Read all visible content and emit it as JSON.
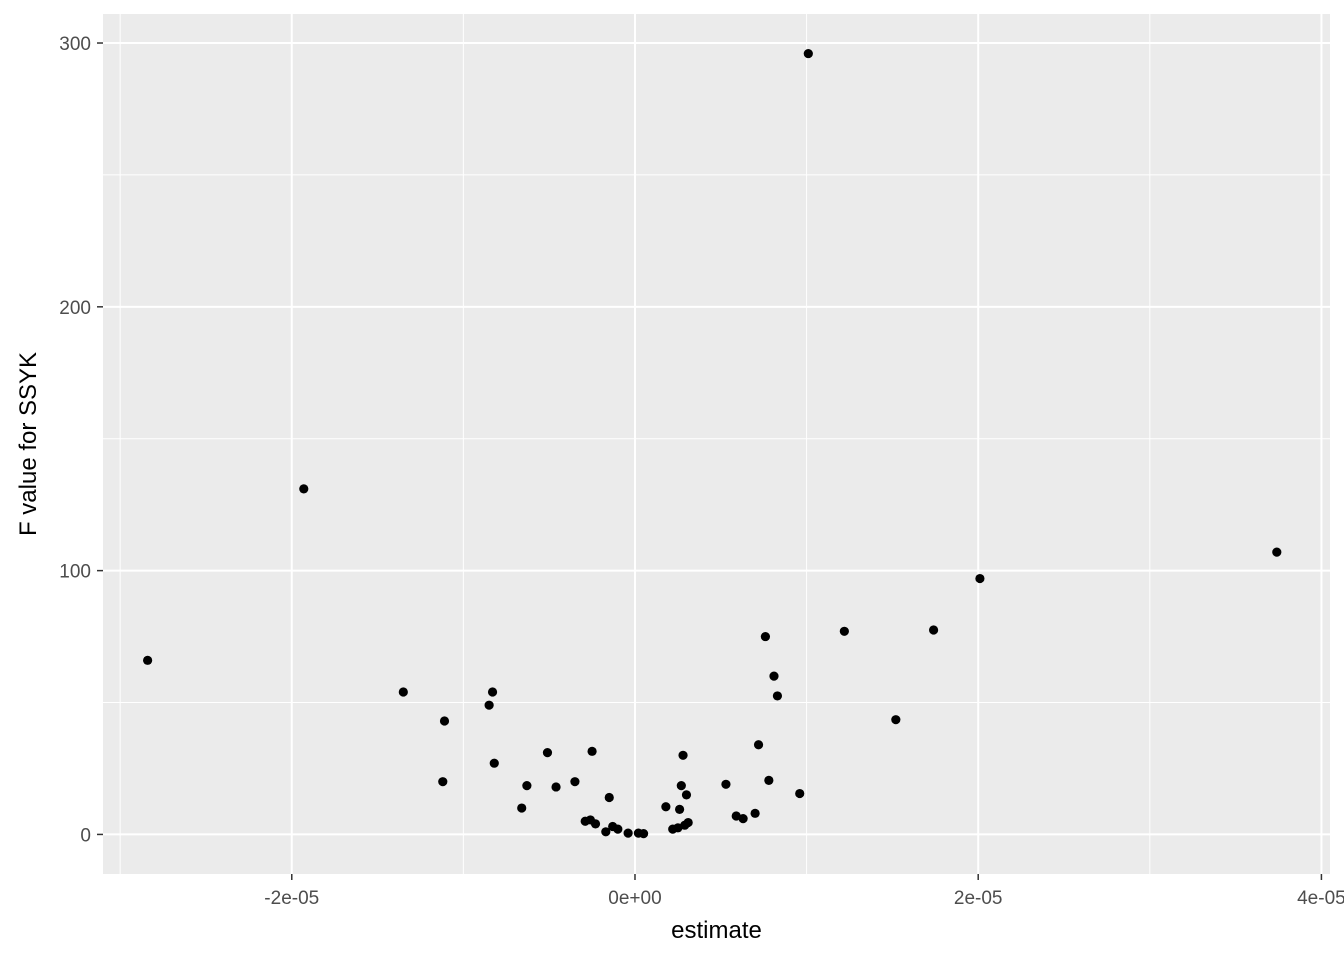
{
  "chart_data": {
    "type": "scatter",
    "title": "",
    "xlabel": "estimate",
    "ylabel": "F value for SSYK",
    "xlim": [
      -3.1e-05,
      4.05e-05
    ],
    "ylim": [
      -15,
      311
    ],
    "x_ticks": [
      {
        "value": -2e-05,
        "label": "-2e-05"
      },
      {
        "value": 0,
        "label": "0e+00"
      },
      {
        "value": 2e-05,
        "label": "2e-05"
      },
      {
        "value": 4e-05,
        "label": "4e-05"
      }
    ],
    "y_ticks": [
      {
        "value": 0,
        "label": "0"
      },
      {
        "value": 100,
        "label": "100"
      },
      {
        "value": 200,
        "label": "200"
      },
      {
        "value": 300,
        "label": "300"
      }
    ],
    "grid": true,
    "panel_background": "#ebebeb",
    "grid_color": "#ffffff",
    "point_color": "#000000",
    "points": [
      {
        "x": -2.84e-05,
        "y": 66
      },
      {
        "x": -1.93e-05,
        "y": 131
      },
      {
        "x": -1.35e-05,
        "y": 54
      },
      {
        "x": -1.11e-05,
        "y": 43
      },
      {
        "x": -1.12e-05,
        "y": 20
      },
      {
        "x": -8.5e-06,
        "y": 49
      },
      {
        "x": -8.3e-06,
        "y": 54
      },
      {
        "x": -8.2e-06,
        "y": 27
      },
      {
        "x": -6.6e-06,
        "y": 10
      },
      {
        "x": -6.3e-06,
        "y": 18.5
      },
      {
        "x": -5.1e-06,
        "y": 31
      },
      {
        "x": -4.6e-06,
        "y": 18
      },
      {
        "x": -3.5e-06,
        "y": 20
      },
      {
        "x": -2.9e-06,
        "y": 5
      },
      {
        "x": -2.6e-06,
        "y": 5.5
      },
      {
        "x": -2.5e-06,
        "y": 31.5
      },
      {
        "x": -2.3e-06,
        "y": 4
      },
      {
        "x": -1.7e-06,
        "y": 1
      },
      {
        "x": -1.5e-06,
        "y": 14
      },
      {
        "x": -1.3e-06,
        "y": 3
      },
      {
        "x": -1e-06,
        "y": 2
      },
      {
        "x": -4e-07,
        "y": 0.5
      },
      {
        "x": 2e-07,
        "y": 0.5
      },
      {
        "x": 5e-07,
        "y": 0.3
      },
      {
        "x": 1.8e-06,
        "y": 10.5
      },
      {
        "x": 2.2e-06,
        "y": 2
      },
      {
        "x": 2.5e-06,
        "y": 2.5
      },
      {
        "x": 2.6e-06,
        "y": 9.5
      },
      {
        "x": 2.7e-06,
        "y": 18.5
      },
      {
        "x": 2.8e-06,
        "y": 30
      },
      {
        "x": 2.9e-06,
        "y": 3.5
      },
      {
        "x": 3e-06,
        "y": 15
      },
      {
        "x": 3.1e-06,
        "y": 4.5
      },
      {
        "x": 5.3e-06,
        "y": 19
      },
      {
        "x": 5.9e-06,
        "y": 7
      },
      {
        "x": 6.3e-06,
        "y": 6
      },
      {
        "x": 7e-06,
        "y": 8
      },
      {
        "x": 7.2e-06,
        "y": 34
      },
      {
        "x": 7.6e-06,
        "y": 75
      },
      {
        "x": 7.8e-06,
        "y": 20.5
      },
      {
        "x": 8.1e-06,
        "y": 60
      },
      {
        "x": 8.3e-06,
        "y": 52.5
      },
      {
        "x": 9.6e-06,
        "y": 15.5
      },
      {
        "x": 1.01e-05,
        "y": 296
      },
      {
        "x": 1.22e-05,
        "y": 77
      },
      {
        "x": 1.52e-05,
        "y": 43.5
      },
      {
        "x": 1.74e-05,
        "y": 77.5
      },
      {
        "x": 2.01e-05,
        "y": 97
      },
      {
        "x": 3.74e-05,
        "y": 107
      }
    ]
  }
}
